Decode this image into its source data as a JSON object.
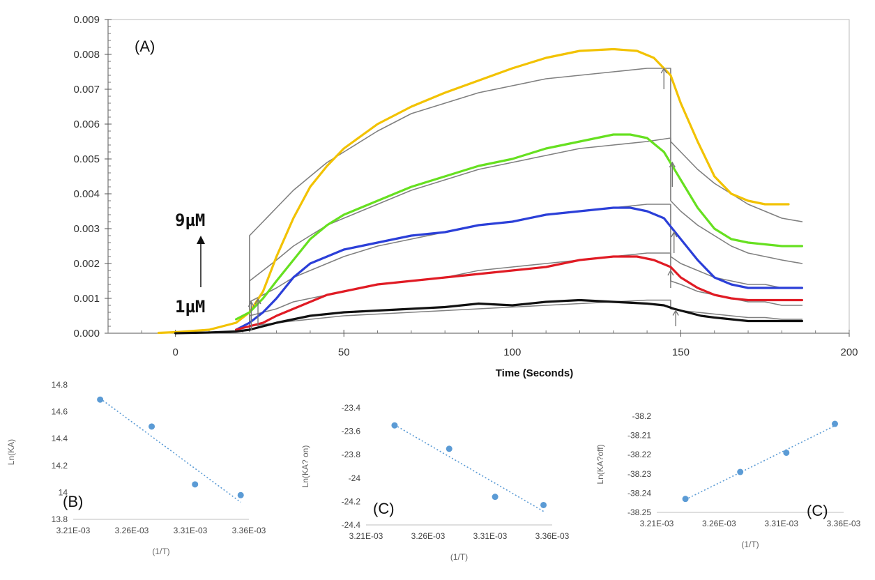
{
  "chart_data": [
    {
      "type": "line",
      "panel_label": "(A)",
      "xlabel": "Time (Seconds)",
      "ylabel": "",
      "xlim": [
        -20,
        200
      ],
      "ylim": [
        0,
        0.009
      ],
      "x_ticks": [
        "0",
        "50",
        "100",
        "150",
        "200"
      ],
      "y_ticks": [
        "0.000",
        "0.001",
        "0.002",
        "0.003",
        "0.004",
        "0.005",
        "0.006",
        "0.007",
        "0.008",
        "0.009"
      ],
      "annotations": [
        "9µM",
        "1µM"
      ],
      "grid": "none",
      "legend": "none",
      "series": [
        {
          "color": "#f2c200",
          "x": [
            -5,
            0,
            10,
            18,
            22,
            26,
            30,
            35,
            40,
            45,
            50,
            60,
            70,
            80,
            90,
            100,
            110,
            120,
            130,
            137,
            142,
            147,
            150,
            155,
            160,
            165,
            170,
            175,
            182
          ],
          "y": [
            1e-05,
            3e-05,
            0.0001,
            0.0003,
            0.0006,
            0.0012,
            0.0022,
            0.0033,
            0.0042,
            0.0048,
            0.0053,
            0.006,
            0.0065,
            0.0069,
            0.00725,
            0.0076,
            0.0079,
            0.0081,
            0.00815,
            0.0081,
            0.0079,
            0.0074,
            0.0066,
            0.0055,
            0.0045,
            0.004,
            0.0038,
            0.0037,
            0.0037
          ]
        },
        {
          "color": "#66e020",
          "x": [
            18,
            22,
            26,
            30,
            35,
            40,
            45,
            50,
            60,
            70,
            80,
            90,
            100,
            110,
            120,
            130,
            135,
            140,
            145,
            150,
            155,
            160,
            165,
            170,
            175,
            180,
            186
          ],
          "y": [
            0.0004,
            0.0006,
            0.001,
            0.0015,
            0.0021,
            0.0027,
            0.0031,
            0.0034,
            0.0038,
            0.0042,
            0.0045,
            0.0048,
            0.005,
            0.0053,
            0.0055,
            0.0057,
            0.0057,
            0.0056,
            0.0052,
            0.0044,
            0.0036,
            0.003,
            0.0027,
            0.0026,
            0.00255,
            0.0025,
            0.0025
          ]
        },
        {
          "color": "#2b3fd8",
          "x": [
            18,
            22,
            26,
            30,
            35,
            40,
            45,
            50,
            60,
            70,
            80,
            90,
            100,
            110,
            120,
            130,
            135,
            140,
            145,
            150,
            155,
            160,
            165,
            170,
            175,
            180,
            186
          ],
          "y": [
            0.0001,
            0.0003,
            0.0006,
            0.001,
            0.0016,
            0.002,
            0.0022,
            0.0024,
            0.0026,
            0.0028,
            0.0029,
            0.0031,
            0.0032,
            0.0034,
            0.0035,
            0.0036,
            0.0036,
            0.0035,
            0.0033,
            0.0027,
            0.0021,
            0.0016,
            0.0014,
            0.0013,
            0.0013,
            0.0013,
            0.0013
          ]
        },
        {
          "color": "#e01b24",
          "x": [
            18,
            22,
            26,
            30,
            35,
            40,
            45,
            50,
            60,
            70,
            80,
            90,
            100,
            110,
            120,
            130,
            137,
            142,
            147,
            150,
            155,
            160,
            165,
            170,
            175,
            180,
            186
          ],
          "y": [
            0.0001,
            0.0002,
            0.0003,
            0.0005,
            0.0007,
            0.0009,
            0.0011,
            0.0012,
            0.0014,
            0.0015,
            0.0016,
            0.0017,
            0.0018,
            0.0019,
            0.0021,
            0.0022,
            0.0022,
            0.0021,
            0.0019,
            0.0016,
            0.0013,
            0.0011,
            0.001,
            0.00095,
            0.00095,
            0.00095,
            0.00095
          ]
        },
        {
          "color": "#111111",
          "x": [
            0,
            10,
            18,
            22,
            26,
            30,
            35,
            40,
            45,
            50,
            60,
            70,
            80,
            90,
            100,
            110,
            120,
            130,
            140,
            145,
            148,
            152,
            156,
            160,
            165,
            170,
            175,
            180,
            186
          ],
          "y": [
            0.0,
            2e-05,
            5e-05,
            0.0001,
            0.0002,
            0.0003,
            0.0004,
            0.0005,
            0.00055,
            0.0006,
            0.00065,
            0.0007,
            0.00075,
            0.00085,
            0.0008,
            0.0009,
            0.00095,
            0.0009,
            0.00085,
            0.0008,
            0.0007,
            0.0006,
            0.0005,
            0.00045,
            0.0004,
            0.00035,
            0.00035,
            0.00035,
            0.00035
          ]
        },
        {
          "color": "#808080",
          "x": [
            22,
            22,
            26,
            30,
            35,
            40,
            45,
            50,
            60,
            70,
            80,
            90,
            100,
            110,
            120,
            130,
            140,
            147,
            147,
            150,
            155,
            160,
            165,
            170,
            175,
            180,
            186
          ],
          "y": [
            0.0001,
            0.0028,
            0.0032,
            0.0036,
            0.0041,
            0.0045,
            0.0049,
            0.0052,
            0.0058,
            0.0063,
            0.0066,
            0.0069,
            0.0071,
            0.0073,
            0.0074,
            0.0075,
            0.0076,
            0.0076,
            0.0055,
            0.0052,
            0.0047,
            0.0043,
            0.004,
            0.0037,
            0.0035,
            0.0033,
            0.0032
          ]
        },
        {
          "color": "#808080",
          "x": [
            22,
            22,
            26,
            30,
            35,
            40,
            45,
            50,
            60,
            70,
            80,
            90,
            100,
            110,
            120,
            130,
            140,
            147,
            147,
            150,
            155,
            160,
            165,
            170,
            175,
            180,
            186
          ],
          "y": [
            0.0001,
            0.0015,
            0.0018,
            0.0021,
            0.0025,
            0.0028,
            0.0031,
            0.0033,
            0.0037,
            0.0041,
            0.0044,
            0.0047,
            0.0049,
            0.0051,
            0.0053,
            0.0054,
            0.0055,
            0.0056,
            0.0038,
            0.0035,
            0.0031,
            0.0028,
            0.0025,
            0.0023,
            0.0022,
            0.0021,
            0.002
          ]
        },
        {
          "color": "#808080",
          "x": [
            22,
            22,
            26,
            30,
            35,
            40,
            45,
            50,
            60,
            70,
            80,
            90,
            100,
            110,
            120,
            130,
            140,
            147,
            147,
            150,
            155,
            160,
            165,
            170,
            175,
            180,
            186
          ],
          "y": [
            0.0001,
            0.0009,
            0.0011,
            0.0013,
            0.0016,
            0.0018,
            0.002,
            0.0022,
            0.0025,
            0.0027,
            0.0029,
            0.0031,
            0.0032,
            0.0034,
            0.0035,
            0.0036,
            0.0037,
            0.0037,
            0.0022,
            0.002,
            0.0018,
            0.0016,
            0.0015,
            0.0014,
            0.0014,
            0.0013,
            0.0013
          ]
        },
        {
          "color": "#808080",
          "x": [
            22,
            22,
            26,
            30,
            35,
            40,
            45,
            50,
            60,
            70,
            80,
            90,
            100,
            110,
            120,
            130,
            140,
            147,
            147,
            150,
            155,
            160,
            165,
            170,
            175,
            180,
            186
          ],
          "y": [
            0.0001,
            0.0005,
            0.0006,
            0.0007,
            0.0009,
            0.001,
            0.0011,
            0.0012,
            0.0014,
            0.0015,
            0.0016,
            0.0018,
            0.0019,
            0.002,
            0.0021,
            0.0022,
            0.0023,
            0.0023,
            0.0015,
            0.0014,
            0.0012,
            0.0011,
            0.001,
            0.0009,
            0.0009,
            0.0008,
            0.0008
          ]
        },
        {
          "color": "#808080",
          "x": [
            22,
            22,
            26,
            30,
            35,
            40,
            45,
            50,
            60,
            70,
            80,
            90,
            100,
            110,
            120,
            130,
            140,
            147,
            147,
            150,
            155,
            160,
            165,
            170,
            175,
            180,
            186
          ],
          "y": [
            5e-05,
            0.0002,
            0.00025,
            0.0003,
            0.00035,
            0.0004,
            0.00045,
            0.0005,
            0.00055,
            0.0006,
            0.00065,
            0.0007,
            0.00075,
            0.0008,
            0.00085,
            0.0009,
            0.00095,
            0.00095,
            0.0007,
            0.00065,
            0.0006,
            0.00055,
            0.0005,
            0.00045,
            0.00045,
            0.0004,
            0.0004
          ]
        }
      ]
    },
    {
      "type": "scatter",
      "panel_label": "(B)",
      "xlabel": "(1/T)",
      "ylabel": "Ln(KA)",
      "xlim": [
        0.00321,
        0.00336
      ],
      "ylim": [
        13.8,
        14.8
      ],
      "x_ticks": [
        "3.21E-03",
        "3.26E-03",
        "3.31E-03",
        "3.36E-03"
      ],
      "y_ticks": [
        "13.8",
        "14",
        "14.2",
        "14.4",
        "14.6",
        "14.8"
      ],
      "points": [
        [
          0.003233,
          14.69
        ],
        [
          0.003277,
          14.49
        ],
        [
          0.003314,
          14.06
        ],
        [
          0.003353,
          13.98
        ]
      ],
      "trendline": "linear, dotted",
      "point_color": "#5b9bd5"
    },
    {
      "type": "scatter",
      "panel_label": "(C)",
      "xlabel": "(1/T)",
      "ylabel": "Ln(KA? on)",
      "xlim": [
        0.00321,
        0.00336
      ],
      "ylim": [
        -24.4,
        -23.4
      ],
      "x_ticks": [
        "3.21E-03",
        "3.26E-03",
        "3.31E-03",
        "3.36E-03"
      ],
      "y_ticks": [
        "-24.4",
        "-24.2",
        "-24",
        "-23.8",
        "-23.6",
        "-23.4"
      ],
      "points": [
        [
          0.003233,
          -23.55
        ],
        [
          0.003277,
          -23.75
        ],
        [
          0.003314,
          -24.16
        ],
        [
          0.003353,
          -24.23
        ]
      ],
      "trendline": "linear, dotted",
      "point_color": "#5b9bd5"
    },
    {
      "type": "scatter",
      "panel_label": "(C)",
      "xlabel": "(1/T)",
      "ylabel": "Ln(KA?off)",
      "xlim": [
        0.00321,
        0.00336
      ],
      "ylim": [
        -38.25,
        -38.2
      ],
      "x_ticks": [
        "3.21E-03",
        "3.26E-03",
        "3.31E-03",
        "3.36E-03"
      ],
      "y_ticks": [
        "-38.25",
        "-38.24",
        "-38.23",
        "-38.22",
        "-38.21",
        "-38.2"
      ],
      "points": [
        [
          0.003233,
          -38.243
        ],
        [
          0.003277,
          -38.229
        ],
        [
          0.003314,
          -38.219
        ],
        [
          0.003353,
          -38.204
        ]
      ],
      "trendline": "linear, dotted",
      "point_color": "#5b9bd5"
    }
  ]
}
